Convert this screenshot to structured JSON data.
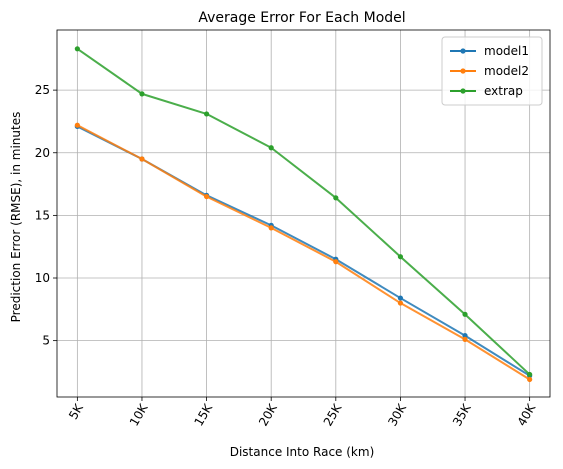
{
  "chart_data": {
    "type": "line",
    "title": "Average Error For Each Model",
    "xlabel": "Distance Into Race (km)",
    "ylabel": "Prediction Error (RMSE), in minutes",
    "categories": [
      "5K",
      "10K",
      "15K",
      "20K",
      "25K",
      "30K",
      "35K",
      "40K"
    ],
    "ylim": [
      0.5,
      29.8
    ],
    "yticks": [
      5,
      10,
      15,
      20,
      25
    ],
    "grid": true,
    "legend": "top-right",
    "series": [
      {
        "name": "model1",
        "color": "#1f77b4",
        "values": [
          22.1,
          19.5,
          16.6,
          14.2,
          11.5,
          8.4,
          5.4,
          2.2
        ]
      },
      {
        "name": "model2",
        "color": "#ff7f0e",
        "values": [
          22.2,
          19.5,
          16.5,
          14.0,
          11.3,
          8.0,
          5.1,
          1.9
        ]
      },
      {
        "name": "extrap",
        "color": "#2ca02c",
        "values": [
          28.3,
          24.7,
          23.1,
          20.4,
          16.4,
          11.7,
          7.1,
          2.3
        ]
      }
    ]
  }
}
